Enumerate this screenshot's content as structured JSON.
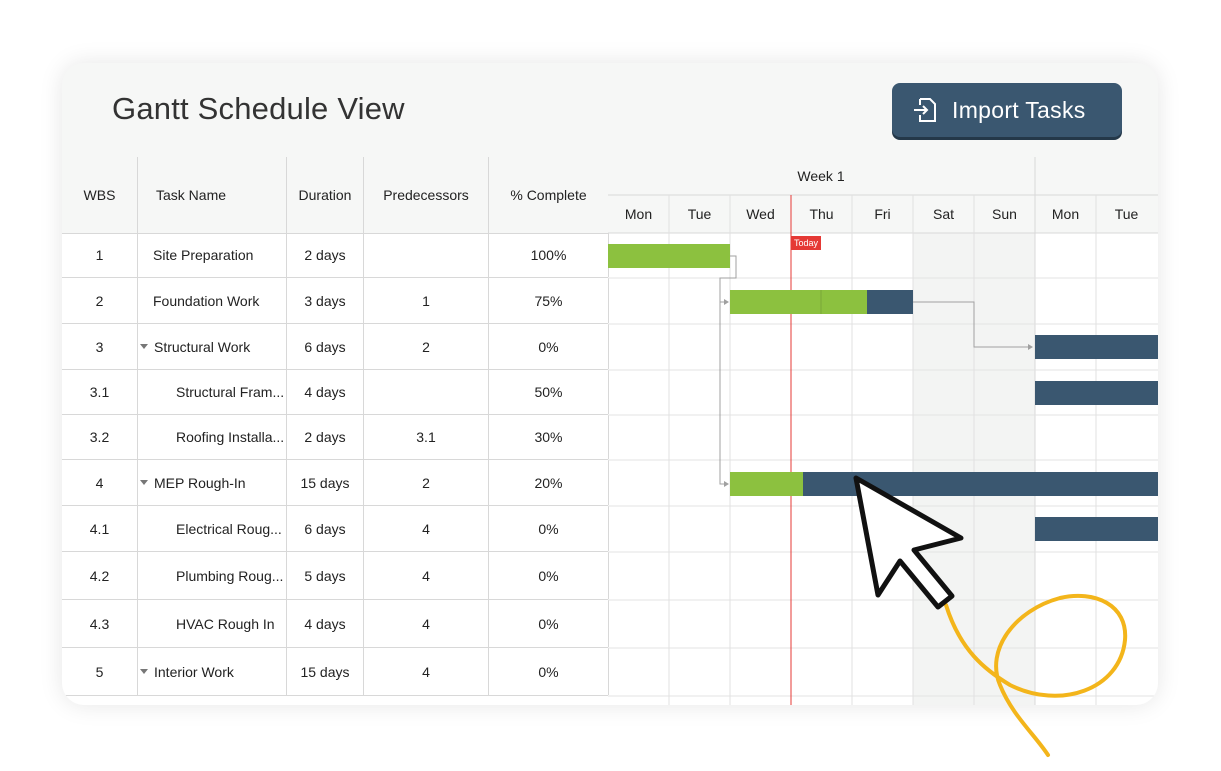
{
  "header": {
    "title": "Gantt Schedule View",
    "import_label": "Import Tasks"
  },
  "columns": {
    "wbs": "WBS",
    "task_name": "Task Name",
    "duration": "Duration",
    "predecessors": "Predecessors",
    "complete": "% Complete"
  },
  "timeline": {
    "week": "Week 1",
    "days": [
      "Mon",
      "Tue",
      "Wed",
      "Thu",
      "Fri",
      "Sat",
      "Sun",
      "Mon",
      "Tue"
    ],
    "today_label": "Today"
  },
  "tasks": [
    {
      "wbs": "1",
      "name": "Site Preparation",
      "duration": "2 days",
      "pred": "",
      "complete": "100%"
    },
    {
      "wbs": "2",
      "name": "Foundation Work",
      "duration": "3 days",
      "pred": "1",
      "complete": "75%"
    },
    {
      "wbs": "3",
      "name": "Structural Work",
      "duration": "6 days",
      "pred": "2",
      "complete": "0%"
    },
    {
      "wbs": "3.1",
      "name": "Structural Fram...",
      "duration": "4 days",
      "pred": "",
      "complete": "50%"
    },
    {
      "wbs": "3.2",
      "name": "Roofing Installa...",
      "duration": "2 days",
      "pred": "3.1",
      "complete": "30%"
    },
    {
      "wbs": "4",
      "name": "MEP Rough-In",
      "duration": "15 days",
      "pred": "2",
      "complete": "20%"
    },
    {
      "wbs": "4.1",
      "name": "Electrical Roug...",
      "duration": "6 days",
      "pred": "4",
      "complete": "0%"
    },
    {
      "wbs": "4.2",
      "name": "Plumbing Roug...",
      "duration": "5 days",
      "pred": "4",
      "complete": "0%"
    },
    {
      "wbs": "4.3",
      "name": "HVAC Rough In",
      "duration": "4 days",
      "pred": "4",
      "complete": "0%"
    },
    {
      "wbs": "5",
      "name": "Interior Work",
      "duration": "15 days",
      "pred": "4",
      "complete": "0%"
    }
  ],
  "colors": {
    "progress": "#8cc13f",
    "remaining": "#3a5770",
    "today_line": "#e53935",
    "weekend": "#f3f4f3",
    "cursor_swirl": "#f3b51b"
  }
}
